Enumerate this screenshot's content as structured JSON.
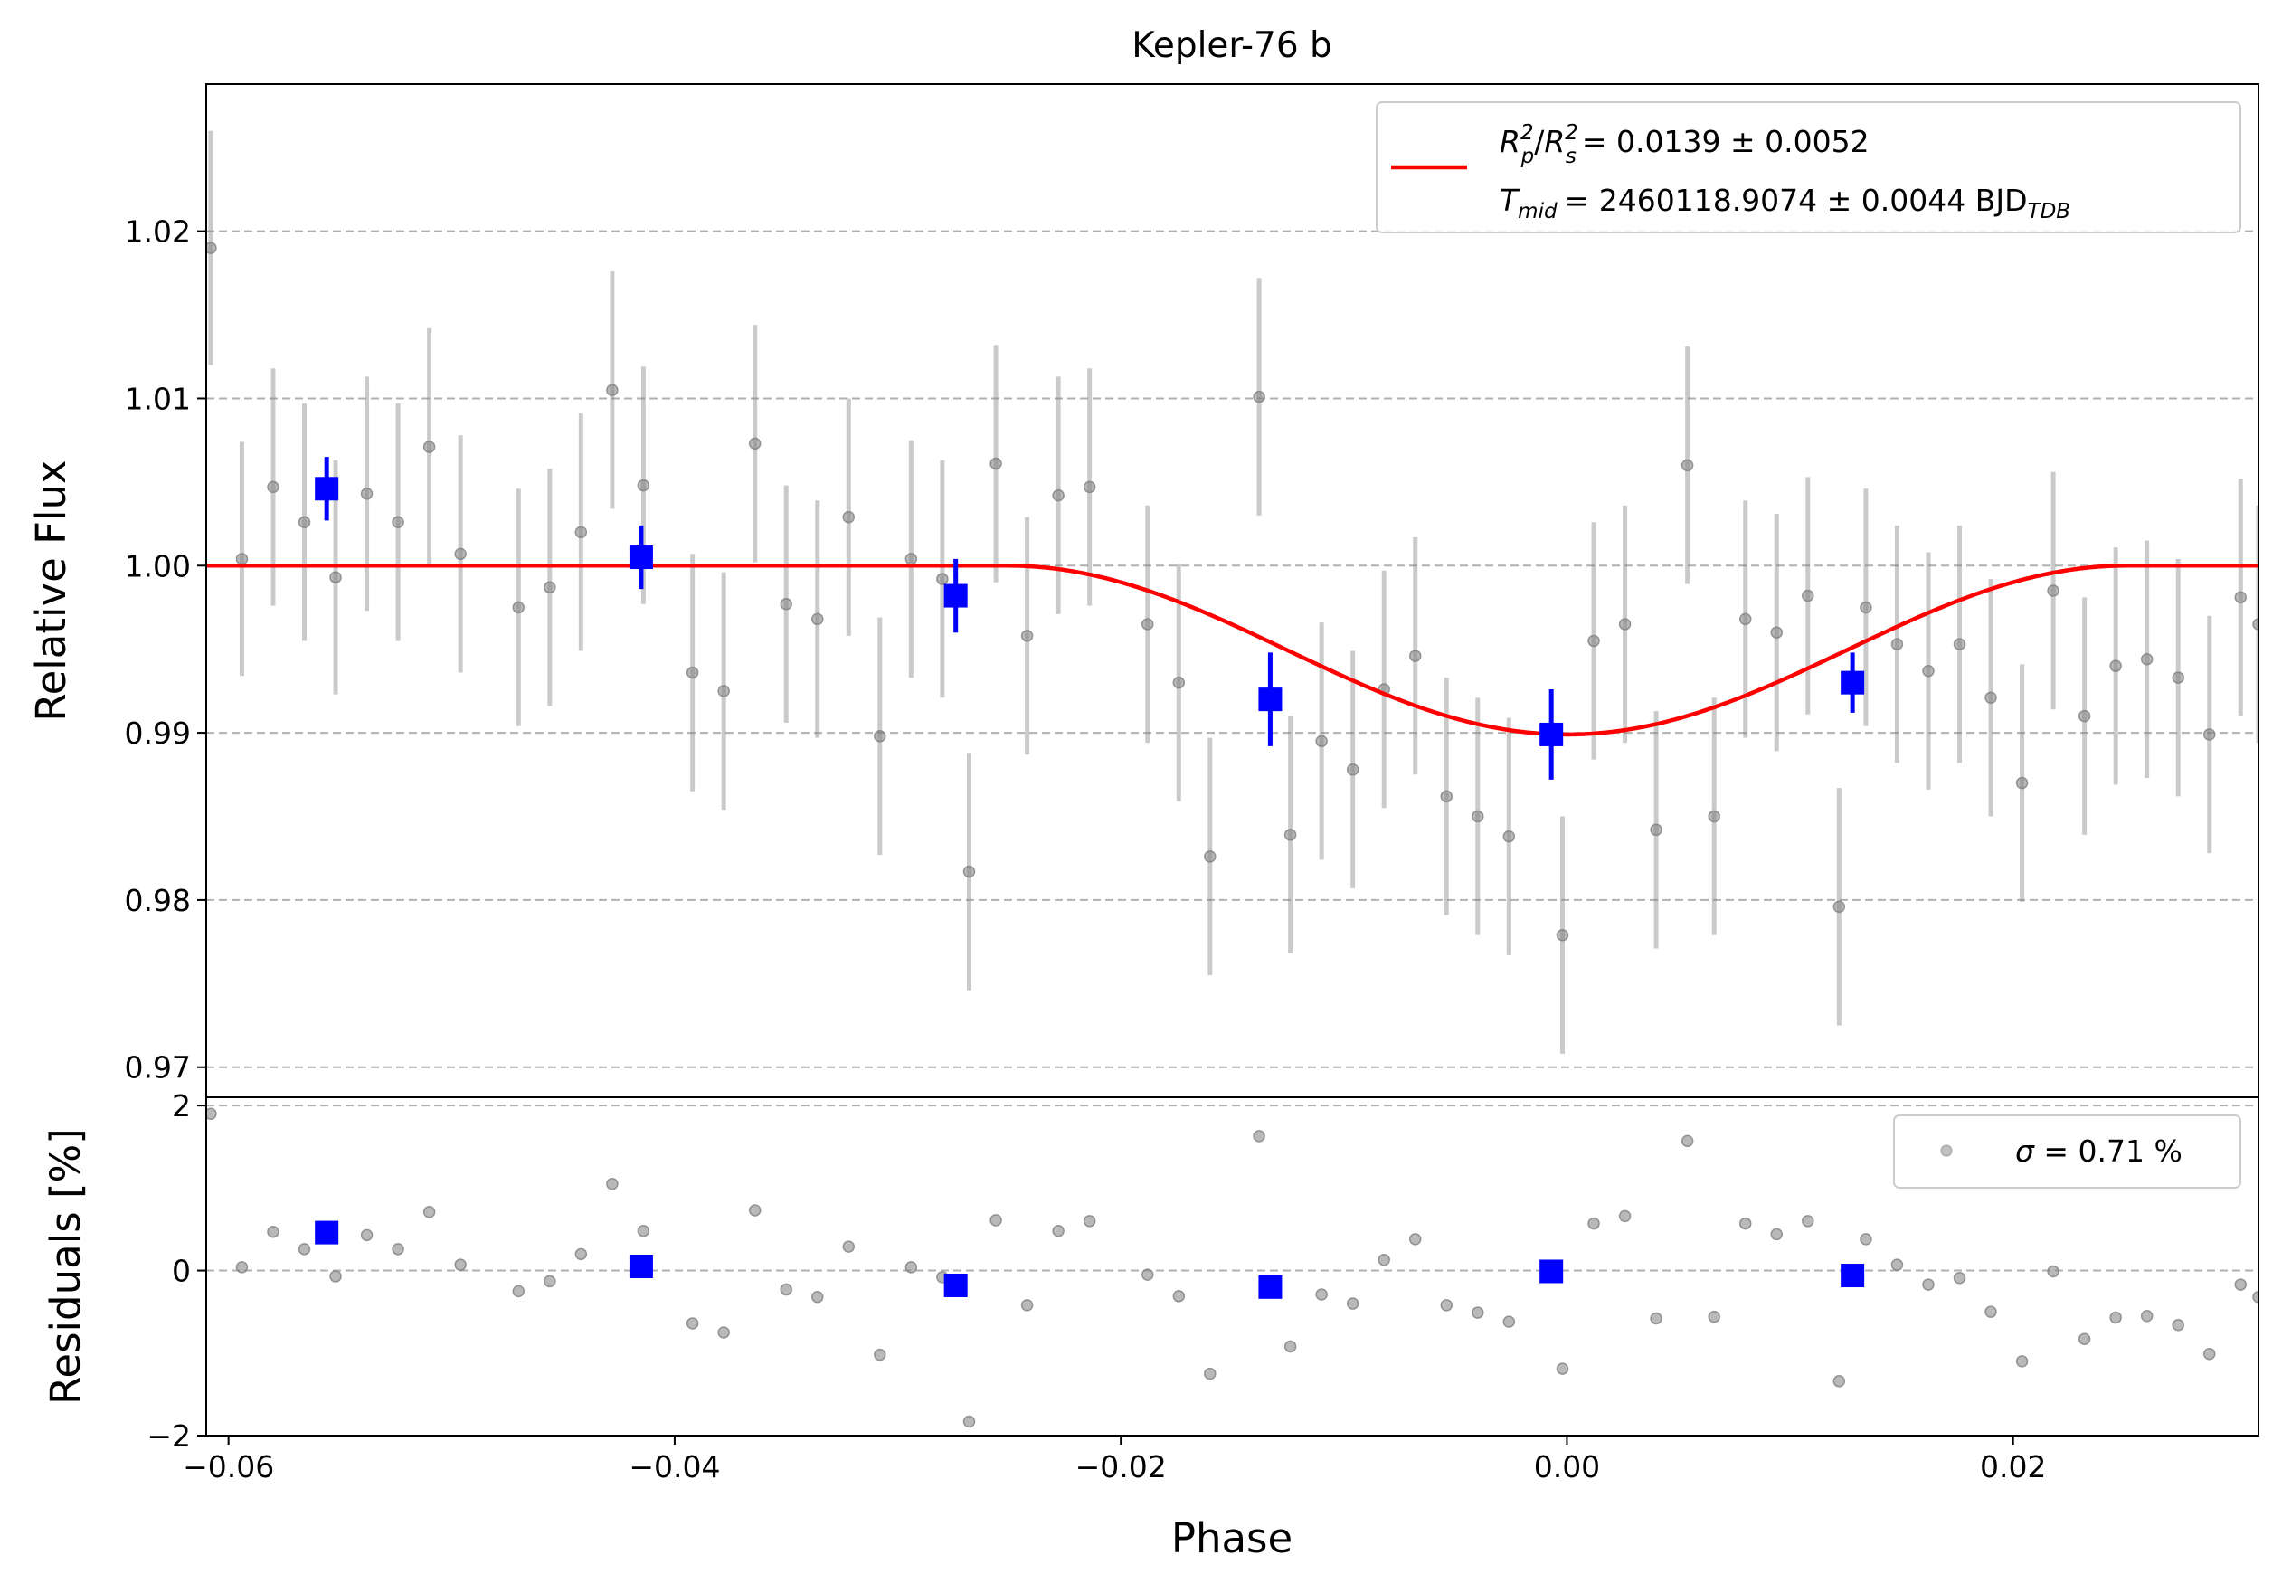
{
  "chart_data": {
    "type": "scatter",
    "title": "Kepler-76 b",
    "xlabel": "Phase",
    "xlim": [
      -0.061,
      0.031
    ],
    "xticks": [
      -0.06,
      -0.04,
      -0.02,
      0.0,
      0.02
    ],
    "xtick_labels": [
      "−0.06",
      "−0.04",
      "−0.02",
      "0.00",
      "0.02"
    ],
    "top_panel": {
      "ylabel": "Relative Flux",
      "ylim": [
        0.9682,
        1.0288
      ],
      "yticks": [
        0.97,
        0.98,
        0.99,
        1.0,
        1.01,
        1.02
      ],
      "ytick_labels": [
        "0.97",
        "0.98",
        "0.99",
        "1.00",
        "1.01",
        "1.02"
      ],
      "grid": "horizontal dashed",
      "legend": {
        "placement": "upper-right",
        "line1": {
          "text": "= 0.0139 ± 0.0052",
          "lhs": "R",
          "sup1": "2",
          "sub1": "p",
          "sup2": "2",
          "sub2": "s"
        },
        "line2": {
          "text": "= 2460118.9074 ± 0.0044 BJD",
          "lhs": "T",
          "sub1": "mid",
          "sub2": "TDB"
        }
      },
      "colors": {
        "raw": "#808080",
        "binned": "#0000ff",
        "model": "#ff0000"
      },
      "raw_points": [
        [
          -0.0608,
          1.019,
          0.007
        ],
        [
          -0.0594,
          1.0004,
          0.007
        ],
        [
          -0.058,
          1.0047,
          0.0071
        ],
        [
          -0.0566,
          1.0026,
          0.0071
        ],
        [
          -0.0552,
          0.9993,
          0.007
        ],
        [
          -0.0538,
          1.0043,
          0.007
        ],
        [
          -0.0524,
          1.0026,
          0.0071
        ],
        [
          -0.051,
          1.0071,
          0.0071
        ],
        [
          -0.0496,
          1.0007,
          0.0071
        ],
        [
          -0.047,
          0.9975,
          0.0071
        ],
        [
          -0.0456,
          0.9987,
          0.0071
        ],
        [
          -0.0442,
          1.002,
          0.0071
        ],
        [
          -0.0428,
          1.0105,
          0.0071
        ],
        [
          -0.0414,
          1.0048,
          0.0071
        ],
        [
          -0.0392,
          0.9936,
          0.0071
        ],
        [
          -0.0378,
          0.9925,
          0.0071
        ],
        [
          -0.0364,
          1.0073,
          0.0071
        ],
        [
          -0.035,
          0.9977,
          0.0071
        ],
        [
          -0.0336,
          0.9968,
          0.0071
        ],
        [
          -0.0322,
          1.0029,
          0.0071
        ],
        [
          -0.0308,
          0.9898,
          0.0071
        ],
        [
          -0.0294,
          1.0004,
          0.0071
        ],
        [
          -0.028,
          0.9992,
          0.0071
        ],
        [
          -0.0268,
          0.9817,
          0.0071
        ],
        [
          -0.0256,
          1.0061,
          0.0071
        ],
        [
          -0.0242,
          0.9958,
          0.0071
        ],
        [
          -0.0228,
          1.0042,
          0.0071
        ],
        [
          -0.0214,
          1.0047,
          0.0071
        ],
        [
          -0.0188,
          0.9965,
          0.0071
        ],
        [
          -0.0174,
          0.993,
          0.0071
        ],
        [
          -0.016,
          0.9826,
          0.0071
        ],
        [
          -0.0138,
          1.0101,
          0.0071
        ],
        [
          -0.0124,
          0.9839,
          0.0071
        ],
        [
          -0.011,
          0.9895,
          0.0071
        ],
        [
          -0.0096,
          0.9878,
          0.0071
        ],
        [
          -0.0082,
          0.9926,
          0.0071
        ],
        [
          -0.0068,
          0.9946,
          0.0071
        ],
        [
          -0.0054,
          0.9862,
          0.0071
        ],
        [
          -0.004,
          0.985,
          0.0071
        ],
        [
          -0.0026,
          0.9838,
          0.0071
        ],
        [
          -0.0002,
          0.9779,
          0.0071
        ],
        [
          0.0012,
          0.9955,
          0.0071
        ],
        [
          0.0026,
          0.9965,
          0.0071
        ],
        [
          0.004,
          0.9842,
          0.0071
        ],
        [
          0.0054,
          1.006,
          0.0071
        ],
        [
          0.0066,
          0.985,
          0.0071
        ],
        [
          0.008,
          0.9968,
          0.0071
        ],
        [
          0.0094,
          0.996,
          0.0071
        ],
        [
          0.0108,
          0.9982,
          0.0071
        ],
        [
          0.0122,
          0.9796,
          0.0071
        ],
        [
          0.0134,
          0.9975,
          0.0071
        ],
        [
          0.0148,
          0.9953,
          0.0071
        ],
        [
          0.0162,
          0.9937,
          0.0071
        ],
        [
          0.0176,
          0.9953,
          0.0071
        ],
        [
          0.019,
          0.9921,
          0.0071
        ],
        [
          0.0204,
          0.987,
          0.0071
        ],
        [
          0.0218,
          0.9985,
          0.0071
        ],
        [
          0.0232,
          0.991,
          0.0071
        ],
        [
          0.0246,
          0.994,
          0.0071
        ],
        [
          0.026,
          0.9944,
          0.0071
        ],
        [
          0.0274,
          0.9933,
          0.0071
        ],
        [
          0.0288,
          0.9899,
          0.0071
        ],
        [
          0.0302,
          0.9981,
          0.0071
        ],
        [
          0.031,
          0.9965,
          0.0071
        ]
      ],
      "binned_points": [
        [
          -0.0556,
          1.0046,
          0.0019
        ],
        [
          -0.0415,
          1.0005,
          0.0019
        ],
        [
          -0.0274,
          0.9982,
          0.0022
        ],
        [
          -0.0133,
          0.992,
          0.0028
        ],
        [
          -0.0007,
          0.9899,
          0.0027
        ],
        [
          0.0128,
          0.993,
          0.0018
        ]
      ],
      "model": {
        "baseline": 1.0,
        "depth": 0.0101,
        "t_center": 0.0,
        "half_width": 0.0251
      }
    },
    "bottom_panel": {
      "ylabel": "Residuals [%]",
      "ylim": [
        -2.0,
        2.1
      ],
      "yticks": [
        -2,
        0,
        2
      ],
      "ytick_labels": [
        "−2",
        "0",
        "2"
      ],
      "grid": "horizontal dashed",
      "legend": {
        "placement": "upper-right",
        "text": " = 0.71 %",
        "symbol": "σ"
      },
      "raw_residuals": [
        [
          -0.0608,
          1.9
        ],
        [
          -0.0594,
          0.04
        ],
        [
          -0.058,
          0.47
        ],
        [
          -0.0566,
          0.26
        ],
        [
          -0.0552,
          -0.07
        ],
        [
          -0.0538,
          0.43
        ],
        [
          -0.0524,
          0.26
        ],
        [
          -0.051,
          0.71
        ],
        [
          -0.0496,
          0.07
        ],
        [
          -0.047,
          -0.25
        ],
        [
          -0.0456,
          -0.13
        ],
        [
          -0.0442,
          0.2
        ],
        [
          -0.0428,
          1.05
        ],
        [
          -0.0414,
          0.48
        ],
        [
          -0.0392,
          -0.64
        ],
        [
          -0.0378,
          -0.75
        ],
        [
          -0.0364,
          0.73
        ],
        [
          -0.035,
          -0.23
        ],
        [
          -0.0336,
          -0.32
        ],
        [
          -0.0322,
          0.29
        ],
        [
          -0.0308,
          -1.02
        ],
        [
          -0.0294,
          0.04
        ],
        [
          -0.028,
          -0.08
        ],
        [
          -0.0268,
          -1.83
        ],
        [
          -0.0256,
          0.61
        ],
        [
          -0.0242,
          -0.42
        ],
        [
          -0.0228,
          0.48
        ],
        [
          -0.0214,
          0.6
        ],
        [
          -0.0188,
          -0.05
        ],
        [
          -0.0174,
          -0.31
        ],
        [
          -0.016,
          -1.25
        ],
        [
          -0.0138,
          1.63
        ],
        [
          -0.0124,
          -0.92
        ],
        [
          -0.011,
          -0.29
        ],
        [
          -0.0096,
          -0.4
        ],
        [
          -0.0082,
          0.13
        ],
        [
          -0.0068,
          0.38
        ],
        [
          -0.0054,
          -0.42
        ],
        [
          -0.004,
          -0.51
        ],
        [
          -0.0026,
          -0.62
        ],
        [
          -0.0002,
          -1.19
        ],
        [
          0.0012,
          0.57
        ],
        [
          0.0026,
          0.66
        ],
        [
          0.004,
          -0.58
        ],
        [
          0.0054,
          1.57
        ],
        [
          0.0066,
          -0.56
        ],
        [
          0.008,
          0.57
        ],
        [
          0.0094,
          0.44
        ],
        [
          0.0108,
          0.6
        ],
        [
          0.0122,
          -1.34
        ],
        [
          0.0134,
          0.38
        ],
        [
          0.0148,
          0.07
        ],
        [
          0.0162,
          -0.17
        ],
        [
          0.0176,
          -0.09
        ],
        [
          0.019,
          -0.5
        ],
        [
          0.0204,
          -1.1
        ],
        [
          0.0218,
          -0.01
        ],
        [
          0.0232,
          -0.83
        ],
        [
          0.0246,
          -0.57
        ],
        [
          0.026,
          -0.55
        ],
        [
          0.0274,
          -0.66
        ],
        [
          0.0288,
          -1.01
        ],
        [
          0.0302,
          -0.17
        ],
        [
          0.031,
          -0.32
        ]
      ],
      "binned_residuals": [
        [
          -0.0556,
          0.46
        ],
        [
          -0.0415,
          0.05
        ],
        [
          -0.0274,
          -0.18
        ],
        [
          -0.0133,
          -0.2
        ],
        [
          -0.0007,
          -0.01
        ],
        [
          0.0128,
          -0.06
        ]
      ]
    }
  }
}
